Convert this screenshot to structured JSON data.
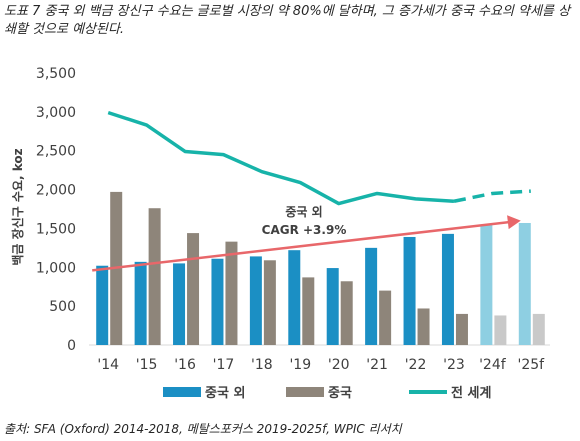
{
  "caption": "도표 7 중국 외 백금 장신구 수요는 글로벌 시장의 약 80%에 달하며, 그 증가세가 중국 수요의 약세를 상쇄할 것으로 예상된다.",
  "source": "출처: SFA (Oxford) 2014-2018, 메탈스포커스 2019-2025f, WPIC 리서치",
  "chart_data": {
    "type": "bar",
    "title": "",
    "xlabel": "",
    "ylabel": "백금 장신구 수요, koz",
    "ylim": [
      0,
      3500
    ],
    "yticks": [
      0,
      500,
      1000,
      1500,
      2000,
      2500,
      3000,
      3500
    ],
    "ytick_labels": [
      "0",
      "500",
      "1,000",
      "1,500",
      "2,000",
      "2,500",
      "3,000",
      "3,500"
    ],
    "grid": false,
    "legend_position": "bottom",
    "categories": [
      "'14",
      "'15",
      "'16",
      "'17",
      "'18",
      "'19",
      "'20",
      "'21",
      "'22",
      "'23",
      "'24f",
      "'25f"
    ],
    "forecast_categories": [
      "'24f",
      "'25f"
    ],
    "series": [
      {
        "name": "중국 외",
        "type": "bar",
        "color": "#1B8FC4",
        "forecast_color": "#8ECFE2",
        "values": [
          1020,
          1070,
          1050,
          1110,
          1140,
          1220,
          990,
          1250,
          1390,
          1430,
          1550,
          1570
        ]
      },
      {
        "name": "중국",
        "type": "bar",
        "color": "#8E857A",
        "forecast_color": "#C9C9C9",
        "values": [
          1970,
          1760,
          1440,
          1330,
          1090,
          870,
          820,
          700,
          470,
          400,
          380,
          400
        ]
      },
      {
        "name": "전 세계",
        "type": "line",
        "color": "#17B3A9",
        "values": [
          2990,
          2830,
          2490,
          2450,
          2230,
          2090,
          1820,
          1950,
          1880,
          1850,
          1950,
          1980
        ]
      }
    ],
    "annotation": {
      "lines": [
        "중국 외",
        "CAGR +3.9%"
      ],
      "arrow_color": "#E8676A",
      "arrow_from": {
        "x": "'14",
        "y": 960
      },
      "arrow_to": {
        "x": "'25f",
        "y": 1600
      }
    }
  }
}
